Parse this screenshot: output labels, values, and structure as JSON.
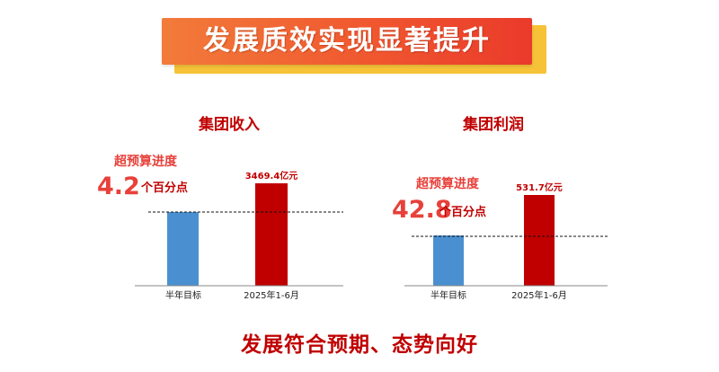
{
  "banner": {
    "title": "发展质效实现显著提升"
  },
  "footer": {
    "text": "发展符合预期、态势向好"
  },
  "colors": {
    "target_bar": "#4a90d0",
    "actual_bar": "#c00000",
    "accent_text": "#e8403a"
  },
  "chart_data": [
    {
      "type": "bar",
      "title": "集团收入",
      "categories": [
        "半年目标",
        "2025年1-6月"
      ],
      "values": [
        null,
        3469.4
      ],
      "bar_labels": [
        "",
        "3469.4亿元"
      ],
      "annotation": {
        "line1": "超预算进度",
        "value": "4.2",
        "unit": "个百分点"
      }
    },
    {
      "type": "bar",
      "title": "集团利润",
      "categories": [
        "半年目标",
        "2025年1-6月"
      ],
      "values": [
        null,
        531.7
      ],
      "bar_labels": [
        "",
        "531.7亿元"
      ],
      "annotation": {
        "line1": "超预算进度",
        "value": "42.8",
        "unit": "个百分点"
      }
    }
  ]
}
